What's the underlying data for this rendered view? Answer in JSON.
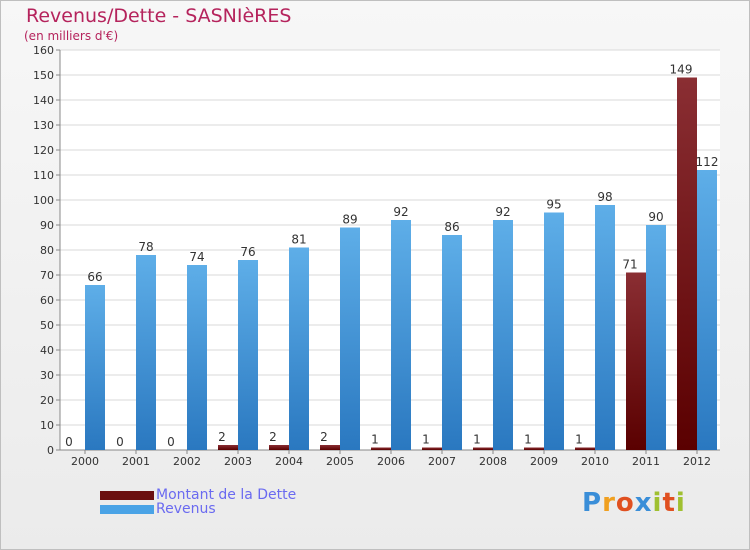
{
  "header": {
    "title": "Revenus/Dette - SASNIèRES",
    "subtitle": "(en milliers d'€)"
  },
  "chart_data": {
    "type": "bar",
    "categories": [
      "2000",
      "2001",
      "2002",
      "2003",
      "2004",
      "2005",
      "2006",
      "2007",
      "2008",
      "2009",
      "2010",
      "2011",
      "2012"
    ],
    "series": [
      {
        "name": "Montant de la Dette",
        "color": "#7a1a1a",
        "values": [
          0,
          0,
          0,
          2,
          2,
          2,
          1,
          1,
          1,
          1,
          1,
          71,
          149
        ]
      },
      {
        "name": "Revenus",
        "color": "#4aa3e6",
        "values": [
          66,
          78,
          74,
          76,
          81,
          89,
          92,
          86,
          92,
          95,
          98,
          90,
          112
        ]
      }
    ],
    "ylim": [
      0,
      160
    ],
    "yticks": [
      0,
      10,
      20,
      30,
      40,
      50,
      60,
      70,
      80,
      90,
      100,
      110,
      120,
      130,
      140,
      150,
      160
    ],
    "grid": true,
    "legend_position": "bottom-left"
  },
  "legend": {
    "items": [
      {
        "label": "Montant de la Dette",
        "color": "#6b0f0f"
      },
      {
        "label": "Revenus",
        "color": "#4aa3e6"
      }
    ]
  },
  "logo": {
    "letters": [
      "P",
      "r",
      "o",
      "x",
      "i",
      "t",
      "i"
    ],
    "colors": [
      "#3a8ed8",
      "#f0a020",
      "#e05020",
      "#3a8ed8",
      "#a0c030",
      "#e05020",
      "#a0c030"
    ]
  }
}
